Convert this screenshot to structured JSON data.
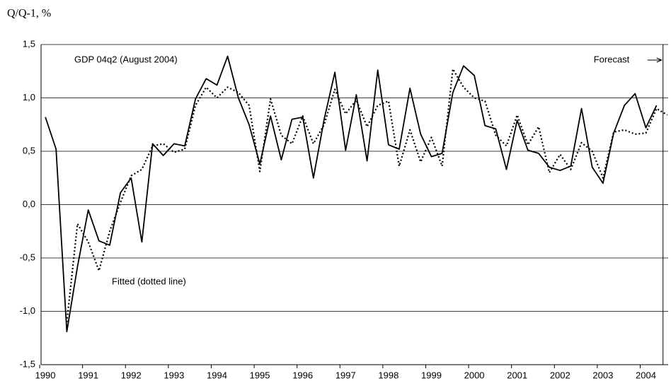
{
  "chart_data": {
    "type": "line",
    "y_axis_label": "Q/Q-1, %",
    "x": [
      1990,
      1990.25,
      1990.5,
      1990.75,
      1991,
      1991.25,
      1991.5,
      1991.75,
      1992,
      1992.25,
      1992.5,
      1992.75,
      1993,
      1993.25,
      1993.5,
      1993.75,
      1994,
      1994.25,
      1994.5,
      1994.75,
      1995,
      1995.25,
      1995.5,
      1995.75,
      1996,
      1996.25,
      1996.5,
      1996.75,
      1997,
      1997.25,
      1997.5,
      1997.75,
      1998,
      1998.25,
      1998.5,
      1998.75,
      1999,
      1999.25,
      1999.5,
      1999.75,
      2000,
      2000.25,
      2000.5,
      2000.75,
      2001,
      2001.25,
      2001.5,
      2001.75,
      2002,
      2002.25,
      2002.5,
      2002.75,
      2003,
      2003.25,
      2003.5,
      2003.75,
      2004,
      2004.25,
      2004.5
    ],
    "series": [
      {
        "name": "GDP 04q2 (August 2004)",
        "color": "#000000",
        "style": "solid",
        "values": [
          0.82,
          0.52,
          -1.19,
          -0.58,
          -0.05,
          -0.34,
          -0.38,
          0.11,
          0.25,
          -0.35,
          0.57,
          0.46,
          0.57,
          0.55,
          0.99,
          1.18,
          1.12,
          1.39,
          1.0,
          0.75,
          0.38,
          0.83,
          0.42,
          0.8,
          0.82,
          0.25,
          0.8,
          1.24,
          0.51,
          1.03,
          0.41,
          1.26,
          0.56,
          0.52,
          1.09,
          0.66,
          0.45,
          0.48,
          1.05,
          1.3,
          1.21,
          0.74,
          0.71,
          0.33,
          0.79,
          0.51,
          0.48,
          0.35,
          0.32,
          0.36,
          0.9,
          0.35,
          0.2,
          0.67,
          0.93,
          1.04,
          0.72,
          0.93,
          null
        ]
      },
      {
        "name": "Fitted (dotted line)",
        "color": "#000000",
        "style": "dotted",
        "values": [
          null,
          null,
          -1.1,
          -0.18,
          -0.35,
          -0.62,
          -0.25,
          0.02,
          0.27,
          0.33,
          0.55,
          0.57,
          0.49,
          0.52,
          0.93,
          1.1,
          1.0,
          1.1,
          1.05,
          0.93,
          0.31,
          0.99,
          0.65,
          0.57,
          0.83,
          0.57,
          0.75,
          1.08,
          0.85,
          0.98,
          0.73,
          0.93,
          0.97,
          0.36,
          0.7,
          0.4,
          0.63,
          0.36,
          1.27,
          1.1,
          1.0,
          0.97,
          0.65,
          0.55,
          0.84,
          0.56,
          0.73,
          0.3,
          0.47,
          0.33,
          0.58,
          0.5,
          0.25,
          0.68,
          0.7,
          0.66,
          0.67,
          0.9,
          0.84
        ]
      }
    ],
    "forecast": {
      "label": "Forecast",
      "x": 2004.4
    },
    "xlim": [
      1989.9,
      2004.52
    ],
    "xticks": [
      1990,
      1991,
      1992,
      1993,
      1994,
      1995,
      1996,
      1997,
      1998,
      1999,
      2000,
      2001,
      2002,
      2003,
      2004
    ],
    "ylim": [
      -1.5,
      1.5
    ],
    "yticks": [
      {
        "value": -1.5,
        "label": "-1,5"
      },
      {
        "value": -1.0,
        "label": "-1,0"
      },
      {
        "value": -0.5,
        "label": "-0,5"
      },
      {
        "value": 0,
        "label": "0,0"
      },
      {
        "value": 0.5,
        "label": "0,5"
      },
      {
        "value": 1.0,
        "label": "1,0"
      },
      {
        "value": 1.5,
        "label": "1,5"
      }
    ],
    "grid": true
  }
}
